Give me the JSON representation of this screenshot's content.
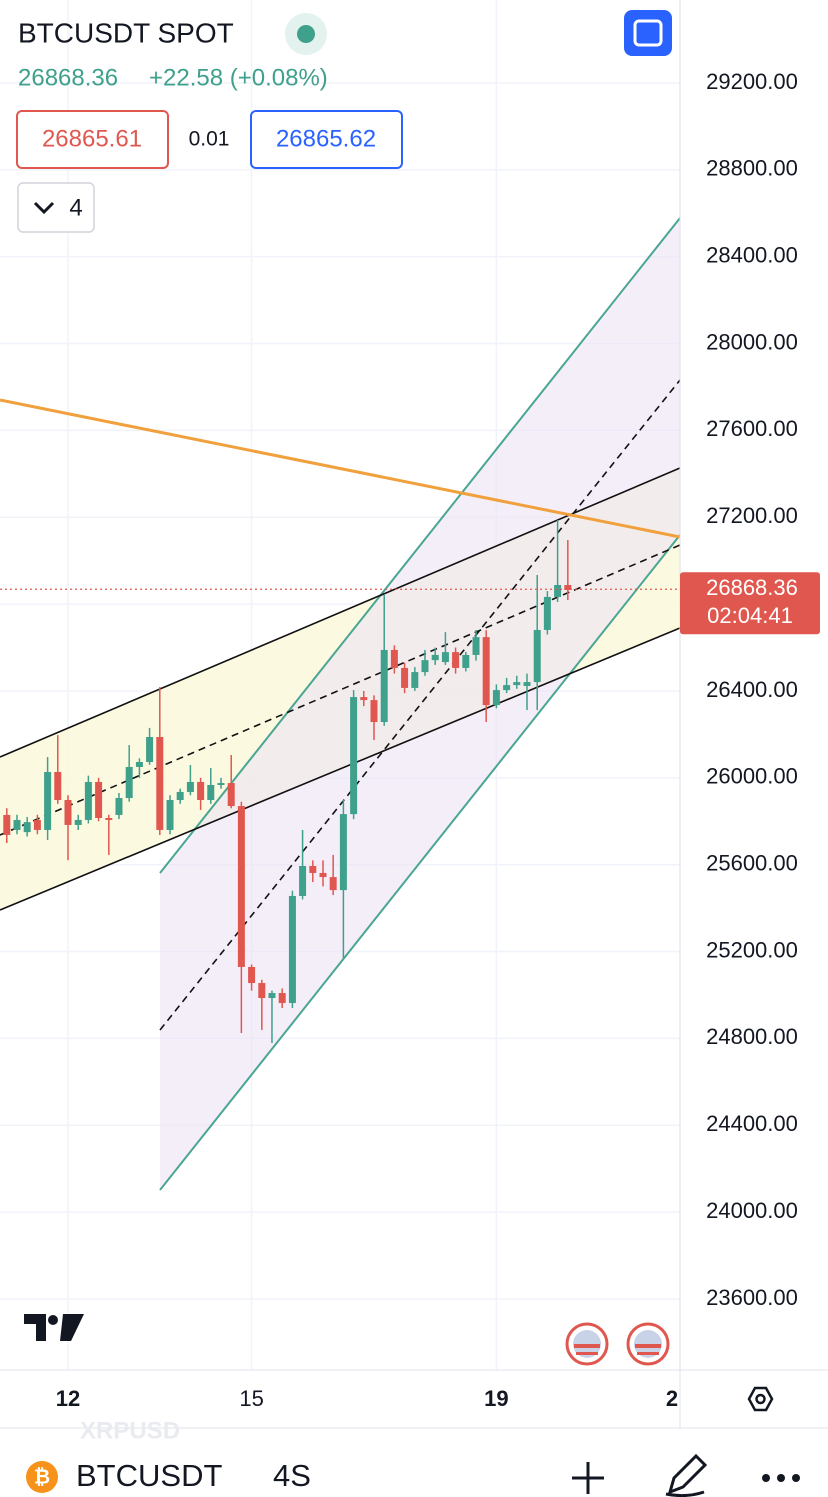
{
  "header": {
    "symbol": "BTCUSDT SPOT",
    "price": "26868.36",
    "change": "+22.58 (+0.08%)",
    "bid": "26865.61",
    "spread": "0.01",
    "ask": "26865.62",
    "indicators": "4"
  },
  "chart_data": {
    "type": "candlestick",
    "x": [
      11,
      11.167,
      11.333,
      11.5,
      11.667,
      11.833,
      12,
      12.167,
      12.333,
      12.5,
      12.667,
      12.833,
      13,
      13.167,
      13.333,
      13.5,
      13.667,
      13.833,
      14,
      14.167,
      14.333,
      14.5,
      14.667,
      14.833,
      15,
      15.167,
      15.333,
      15.5,
      15.667,
      15.833,
      16,
      16.167,
      16.333,
      16.5,
      16.667,
      16.833,
      17,
      17.167,
      17.333,
      17.5,
      17.667,
      17.833,
      18,
      18.167,
      18.333,
      18.5,
      18.667,
      18.833,
      19,
      19.167,
      19.333,
      19.5,
      19.667,
      19.833,
      20,
      20.167
    ],
    "open": [
      25829,
      25760,
      25750,
      25806,
      25760,
      26027,
      25898,
      25783,
      25806,
      25981,
      25815,
      25829,
      25907,
      26050,
      26073,
      26188,
      25760,
      25898,
      25935,
      25981,
      25898,
      25967,
      25976,
      25870,
      25129,
      25055,
      24986,
      25009,
      24963,
      25456,
      25594,
      25562,
      25543,
      25483,
      25833,
      26372,
      26358,
      26257,
      26589,
      26506,
      26414,
      26487,
      26542,
      26533,
      26579,
      26506,
      26566,
      26648,
      26335,
      26404,
      26427,
      26423,
      26441,
      26681,
      26833,
      26888
    ],
    "high": [
      25860,
      25830,
      25820,
      25830,
      26096,
      26197,
      25920,
      25830,
      26010,
      26000,
      25830,
      25930,
      26151,
      26090,
      26230,
      26418,
      25920,
      25950,
      26059,
      26000,
      26045,
      26000,
      26105,
      25890,
      25140,
      25070,
      25020,
      25030,
      25480,
      25760,
      25620,
      25620,
      25645,
      25898,
      26404,
      26400,
      26380,
      26842,
      26610,
      26530,
      26510,
      26589,
      26600,
      26671,
      26600,
      26580,
      26681,
      26680,
      26430,
      26460,
      26470,
      26480,
      26934,
      26860,
      27187,
      27095
    ],
    "low": [
      25700,
      25740,
      25730,
      25740,
      25714,
      25880,
      25621,
      25760,
      25790,
      25800,
      25645,
      25810,
      25890,
      26000,
      26060,
      25737,
      25740,
      25880,
      25920,
      25852,
      25880,
      25950,
      25860,
      24825,
      25020,
      24839,
      24779,
      24940,
      24940,
      25440,
      25520,
      25500,
      25460,
      25170,
      25810,
      26330,
      26174,
      26240,
      26480,
      26390,
      26400,
      26470,
      26520,
      26520,
      26480,
      26490,
      26540,
      26257,
      26320,
      26390,
      26410,
      26312,
      26312,
      26660,
      26810,
      26819
    ],
    "close": [
      25737,
      25806,
      25796,
      25760,
      26027,
      25898,
      25783,
      25806,
      25981,
      25815,
      25806,
      25907,
      26050,
      26073,
      26188,
      25760,
      25898,
      25935,
      25981,
      25898,
      25967,
      25976,
      25870,
      25129,
      25055,
      24986,
      25009,
      24963,
      25456,
      25594,
      25562,
      25543,
      25483,
      25833,
      26372,
      26358,
      26257,
      26589,
      26506,
      26414,
      26487,
      26542,
      26566,
      26579,
      26506,
      26566,
      26648,
      26335,
      26404,
      26427,
      26441,
      26441,
      26681,
      26833,
      26888,
      26865
    ],
    "up_color": "#3fa08c",
    "down_color": "#e0574f",
    "xlim": [
      10.889,
      22
    ],
    "ylim": [
      23273,
      29582
    ],
    "xticks": [
      12,
      15,
      19,
      {
        "value": 22,
        "label": "2"
      }
    ],
    "yticks": [
      {
        "value": 23600,
        "label": "23600.00"
      },
      {
        "value": 24000,
        "label": "24000.00"
      },
      {
        "value": 24400,
        "label": "24400.00"
      },
      {
        "value": 24800,
        "label": "24800.00"
      },
      {
        "value": 25200,
        "label": "25200.00"
      },
      {
        "value": 25600,
        "label": "25600.00"
      },
      {
        "value": 26000,
        "label": "26000.00"
      },
      {
        "value": 26400,
        "label": "26400.00"
      },
      {
        "value": 26800,
        "label": "26800.00"
      },
      {
        "value": 27200,
        "label": "27200.00"
      },
      {
        "value": 27600,
        "label": "27600.00"
      },
      {
        "value": 28000,
        "label": "28000.00"
      },
      {
        "value": 28400,
        "label": "28400.00"
      },
      {
        "value": 28800,
        "label": "28800.00"
      },
      {
        "value": 29200,
        "label": "29200.00"
      }
    ],
    "grid": true,
    "last_price": 26868.36,
    "last_price_label": "26868.36",
    "countdown": "02:04:41"
  },
  "watermark": "XRPUSD",
  "footer": {
    "symbol": "BTCUSDT",
    "interval": "4S"
  }
}
